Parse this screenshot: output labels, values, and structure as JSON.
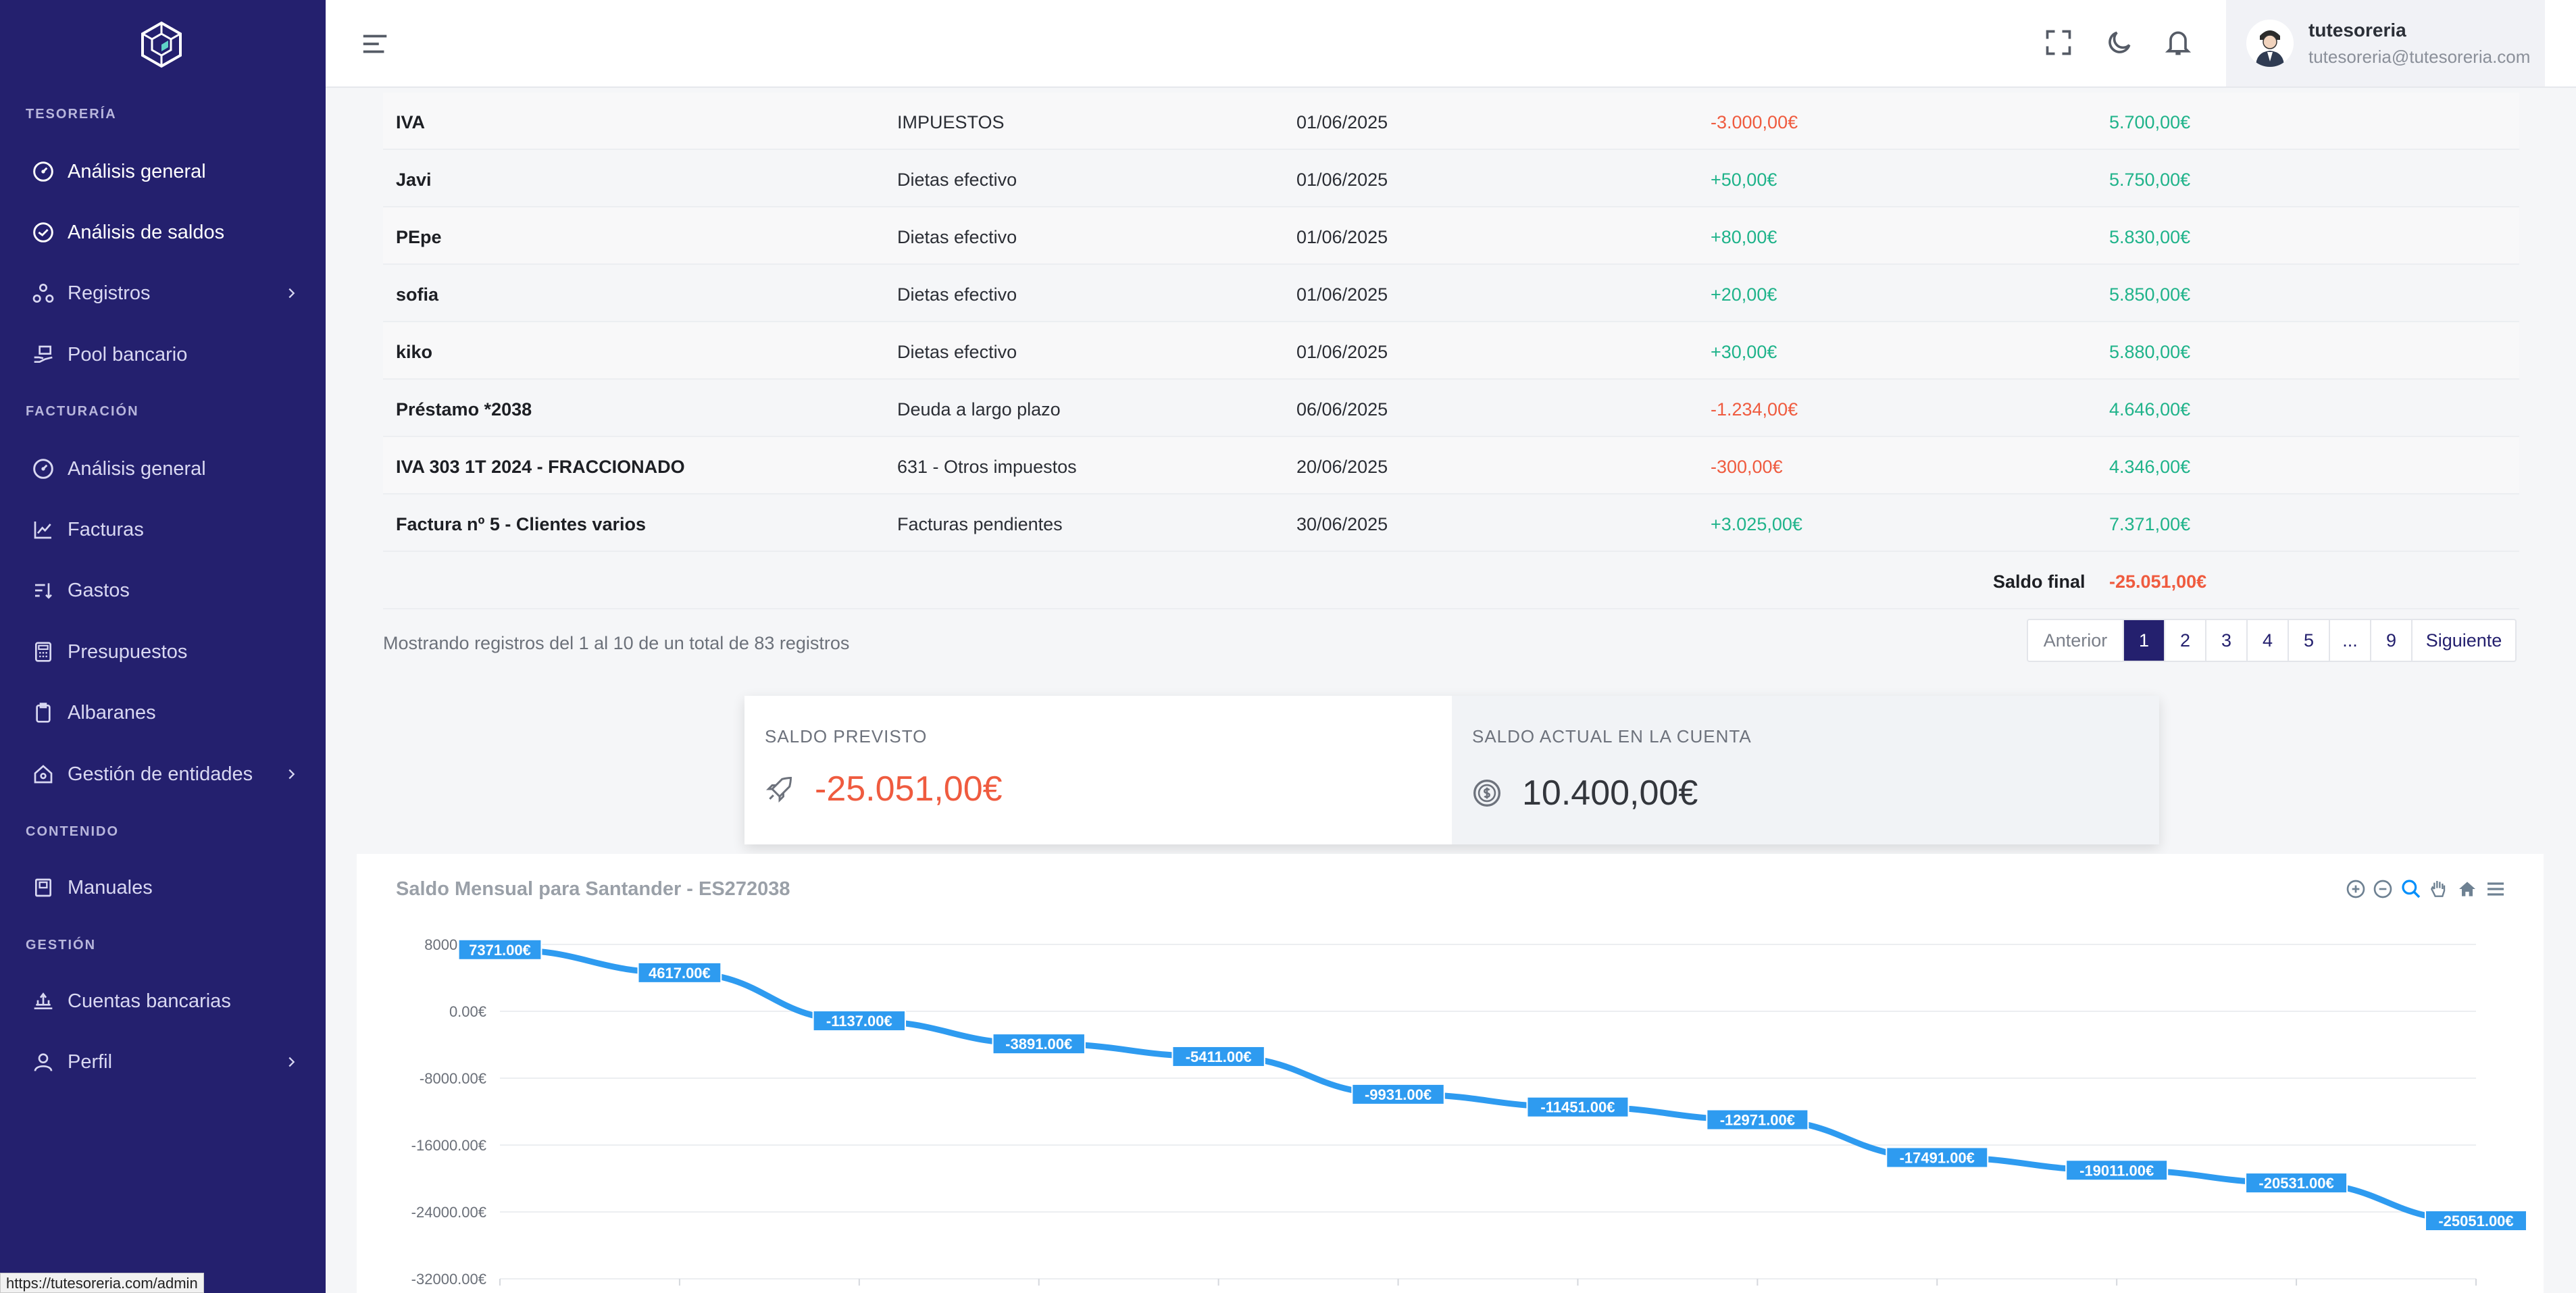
{
  "sidebar": {
    "sections": [
      "TESORERÍA",
      "FACTURACIÓN",
      "CONTENIDO",
      "GESTIÓN"
    ],
    "items": [
      {
        "label": "Análisis general",
        "icon": "gauge-icon"
      },
      {
        "label": "Análisis de saldos",
        "icon": "check-circle-icon"
      },
      {
        "label": "Registros",
        "icon": "nodes-icon"
      },
      {
        "label": "Pool bancario",
        "icon": "hand-money-icon"
      },
      {
        "label": "Análisis general",
        "icon": "gauge-icon"
      },
      {
        "label": "Facturas",
        "icon": "line-chart-icon"
      },
      {
        "label": "Gastos",
        "icon": "sort-list-icon"
      },
      {
        "label": "Presupuestos",
        "icon": "calculator-icon"
      },
      {
        "label": "Albaranes",
        "icon": "clipboard-icon"
      },
      {
        "label": "Gestión de entidades",
        "icon": "home-icon"
      },
      {
        "label": "Manuales",
        "icon": "book-icon"
      },
      {
        "label": "Cuentas bancarias",
        "icon": "bank-icon"
      },
      {
        "label": "Perfil",
        "icon": "user-icon"
      }
    ]
  },
  "user": {
    "name": "tutesoreria",
    "email": "tutesoreria@tutesoreria.com"
  },
  "table": {
    "rows": [
      {
        "concepto": "IVA",
        "categoria": "IMPUESTOS",
        "fecha": "01/06/2025",
        "importe": "-3.000,00€",
        "saldo": "5.700,00€"
      },
      {
        "concepto": "Javi",
        "categoria": "Dietas efectivo",
        "fecha": "01/06/2025",
        "importe": "+50,00€",
        "saldo": "5.750,00€"
      },
      {
        "concepto": "PEpe",
        "categoria": "Dietas efectivo",
        "fecha": "01/06/2025",
        "importe": "+80,00€",
        "saldo": "5.830,00€"
      },
      {
        "concepto": "sofia",
        "categoria": "Dietas efectivo",
        "fecha": "01/06/2025",
        "importe": "+20,00€",
        "saldo": "5.850,00€"
      },
      {
        "concepto": "kiko",
        "categoria": "Dietas efectivo",
        "fecha": "01/06/2025",
        "importe": "+30,00€",
        "saldo": "5.880,00€"
      },
      {
        "concepto": "Préstamo *2038",
        "categoria": "Deuda a largo plazo",
        "fecha": "06/06/2025",
        "importe": "-1.234,00€",
        "saldo": "4.646,00€"
      },
      {
        "concepto": "IVA 303 1T 2024 - FRACCIONADO",
        "categoria": "631 - Otros impuestos",
        "fecha": "20/06/2025",
        "importe": "-300,00€",
        "saldo": "4.346,00€"
      },
      {
        "concepto": "Factura nº 5 - Clientes varios",
        "categoria": "Facturas pendientes",
        "fecha": "30/06/2025",
        "importe": "+3.025,00€",
        "saldo": "7.371,00€"
      }
    ],
    "saldo_final_label": "Saldo final",
    "saldo_final_value": "-25.051,00€"
  },
  "pagination": {
    "info": "Mostrando registros del 1 al 10 de un total de 83 registros",
    "prev": "Anterior",
    "pages": [
      "1",
      "2",
      "3",
      "4",
      "5",
      "...",
      "9"
    ],
    "current": "1",
    "next": "Siguiente"
  },
  "cards": {
    "previsto_label": "SALDO PREVISTO",
    "previsto_value": "-25.051,00€",
    "actual_label": "SALDO ACTUAL EN LA CUENTA",
    "actual_value": "10.400,00€"
  },
  "colors": {
    "sidebar": "#24206e",
    "negative": "#ef5b3f",
    "positive": "#1fb38a",
    "series": "#2e9bf0"
  },
  "status_url": "https://tutesoreria.com/admin",
  "chart_data": {
    "type": "line",
    "title": "Saldo Mensual para Santander - ES272038",
    "ylabel": "",
    "ylim": [
      -32000,
      8000
    ],
    "y_ticks": [
      "8000.00€",
      "0.00€",
      "-8000.00€",
      "-16000.00€",
      "-24000.00€",
      "-32000.00€"
    ],
    "y_tick_values": [
      8000,
      0,
      -8000,
      -16000,
      -24000,
      -32000
    ],
    "series": [
      {
        "values": [
          7371,
          4617,
          -1137,
          -3891,
          -5411,
          -9931,
          -11451,
          -12971,
          -17491,
          -19011,
          -20531,
          -25051
        ],
        "labels": [
          "7371.00€",
          "4617.00€",
          "-1137.00€",
          "-3891.00€",
          "-5411.00€",
          "-9931.00€",
          "-11451.00€",
          "-12971.00€",
          "-17491.00€",
          "-19011.00€",
          "-20531.00€",
          "-25051.00€"
        ]
      }
    ],
    "grid": true
  }
}
